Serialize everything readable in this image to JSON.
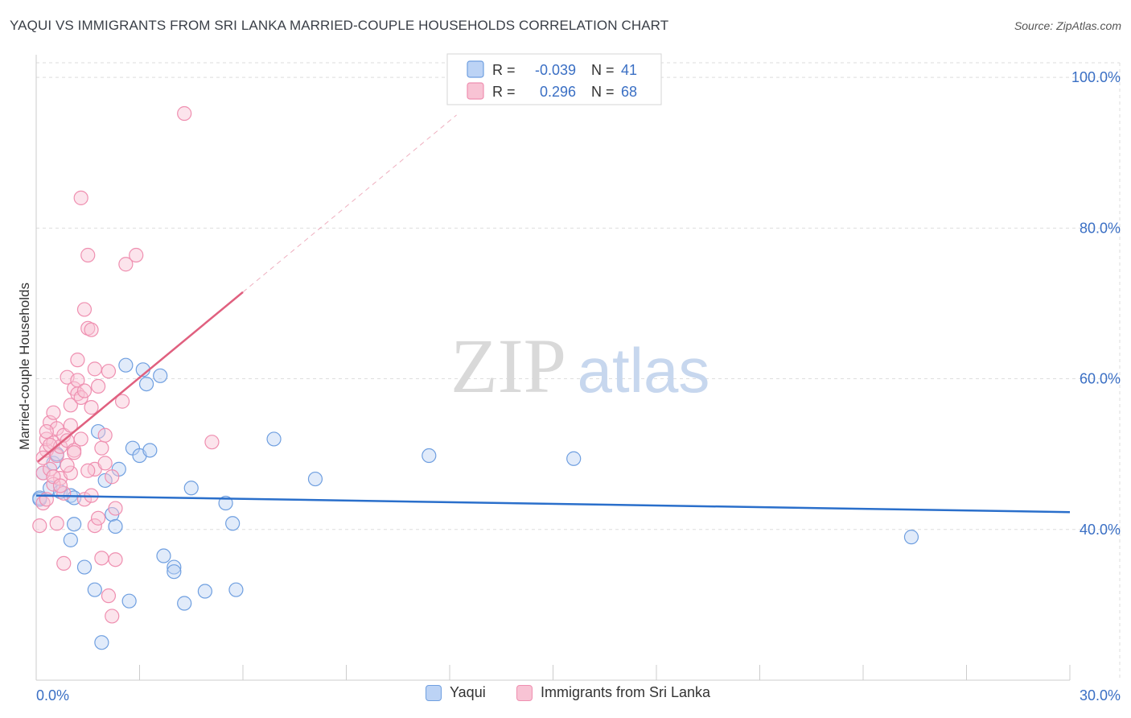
{
  "title": "YAQUI VS IMMIGRANTS FROM SRI LANKA MARRIED-COUPLE HOUSEHOLDS CORRELATION CHART",
  "source": "Source: ZipAtlas.com",
  "watermark": {
    "zip": "ZIP",
    "atlas": "atlas"
  },
  "colors": {
    "blue": "#6f9fe0",
    "blue_fill": "#bcd3f5",
    "blue_line": "#2a6fcb",
    "pink": "#ef8fb0",
    "pink_fill": "#f8c3d4",
    "pink_line": "#e0607f",
    "axis_text": "#3a6fc4",
    "grid": "#dddddd"
  },
  "stats_legend": {
    "rows": [
      {
        "r_label": "R =",
        "r_value": "-0.039",
        "n_label": "N =",
        "n_value": "41",
        "series": "blue"
      },
      {
        "r_label": "R =",
        "r_value": "0.296",
        "n_label": "N =",
        "n_value": "68",
        "series": "pink"
      }
    ]
  },
  "bottom_legend": [
    {
      "label": "Yaqui",
      "series": "blue"
    },
    {
      "label": "Immigrants from Sri Lanka",
      "series": "pink"
    }
  ],
  "chart_data": {
    "type": "scatter",
    "ylabel": "Married-couple Households",
    "xlim": [
      0,
      30
    ],
    "ylim": [
      20,
      103
    ],
    "x_tick_labels": [
      {
        "value": 0,
        "label": "0.0%"
      },
      {
        "value": 30,
        "label": "30.0%"
      }
    ],
    "y_tick_labels": [
      {
        "value": 40,
        "label": "40.0%"
      },
      {
        "value": 60,
        "label": "60.0%"
      },
      {
        "value": 80,
        "label": "80.0%"
      },
      {
        "value": 100,
        "label": "100.0%"
      }
    ],
    "series": [
      {
        "name": "Yaqui",
        "color": "blue",
        "points": [
          [
            0.1,
            44.2
          ],
          [
            0.2,
            47.5
          ],
          [
            0.4,
            45.5
          ],
          [
            0.5,
            48.8
          ],
          [
            0.6,
            50.0
          ],
          [
            0.7,
            45.0
          ],
          [
            1.0,
            44.5
          ],
          [
            1.1,
            44.2
          ],
          [
            1.8,
            53.0
          ],
          [
            2.0,
            46.5
          ],
          [
            2.2,
            42.0
          ],
          [
            2.4,
            48.0
          ],
          [
            2.6,
            61.8
          ],
          [
            2.8,
            50.8
          ],
          [
            3.0,
            49.8
          ],
          [
            3.1,
            61.2
          ],
          [
            3.2,
            59.3
          ],
          [
            3.3,
            50.5
          ],
          [
            3.6,
            60.4
          ],
          [
            4.5,
            45.5
          ],
          [
            5.5,
            43.5
          ],
          [
            5.7,
            40.8
          ],
          [
            6.9,
            52.0
          ],
          [
            8.1,
            46.7
          ],
          [
            11.4,
            49.8
          ],
          [
            15.6,
            49.4
          ],
          [
            25.4,
            39.0
          ],
          [
            1.0,
            38.6
          ],
          [
            1.1,
            40.7
          ],
          [
            1.4,
            35.0
          ],
          [
            1.7,
            32.0
          ],
          [
            1.9,
            25.0
          ],
          [
            2.3,
            40.4
          ],
          [
            2.7,
            30.5
          ],
          [
            3.7,
            36.5
          ],
          [
            4.0,
            35.0
          ],
          [
            4.0,
            34.4
          ],
          [
            4.3,
            30.2
          ],
          [
            4.9,
            31.8
          ],
          [
            5.8,
            32.0
          ],
          [
            0.1,
            44.0
          ]
        ]
      },
      {
        "name": "Immigrants from Sri Lanka",
        "color": "pink",
        "points": [
          [
            0.1,
            40.5
          ],
          [
            0.2,
            43.5
          ],
          [
            0.2,
            47.5
          ],
          [
            0.3,
            50.5
          ],
          [
            0.3,
            52.0
          ],
          [
            0.4,
            54.2
          ],
          [
            0.4,
            48.0
          ],
          [
            0.5,
            55.5
          ],
          [
            0.5,
            51.5
          ],
          [
            0.6,
            53.4
          ],
          [
            0.6,
            49.8
          ],
          [
            0.7,
            46.8
          ],
          [
            0.7,
            51.0
          ],
          [
            0.8,
            52.5
          ],
          [
            0.8,
            44.8
          ],
          [
            0.9,
            60.2
          ],
          [
            0.9,
            51.8
          ],
          [
            1.0,
            56.5
          ],
          [
            1.0,
            47.5
          ],
          [
            1.1,
            58.7
          ],
          [
            1.1,
            50.5
          ],
          [
            1.2,
            58.0
          ],
          [
            1.2,
            62.5
          ],
          [
            1.3,
            57.5
          ],
          [
            1.3,
            52.0
          ],
          [
            1.4,
            69.2
          ],
          [
            1.4,
            44.0
          ],
          [
            1.5,
            76.4
          ],
          [
            1.5,
            66.7
          ],
          [
            1.6,
            66.5
          ],
          [
            1.6,
            56.2
          ],
          [
            1.7,
            61.3
          ],
          [
            1.7,
            48.0
          ],
          [
            1.8,
            59.0
          ],
          [
            1.9,
            50.8
          ],
          [
            2.0,
            52.5
          ],
          [
            2.1,
            61.0
          ],
          [
            2.2,
            47.0
          ],
          [
            2.3,
            42.8
          ],
          [
            2.5,
            57.0
          ],
          [
            2.6,
            75.2
          ],
          [
            2.9,
            76.4
          ],
          [
            4.3,
            95.2
          ],
          [
            5.1,
            51.6
          ],
          [
            1.3,
            84.0
          ],
          [
            0.3,
            44.0
          ],
          [
            0.5,
            46.0
          ],
          [
            0.6,
            40.8
          ],
          [
            0.8,
            35.5
          ],
          [
            0.9,
            48.5
          ],
          [
            1.0,
            53.8
          ],
          [
            1.2,
            59.8
          ],
          [
            1.4,
            58.4
          ],
          [
            1.5,
            47.8
          ],
          [
            1.6,
            44.5
          ],
          [
            1.7,
            40.5
          ],
          [
            1.8,
            41.5
          ],
          [
            1.9,
            36.2
          ],
          [
            2.0,
            48.8
          ],
          [
            2.1,
            31.2
          ],
          [
            2.2,
            28.5
          ],
          [
            2.3,
            36.0
          ],
          [
            0.4,
            51.2
          ],
          [
            0.5,
            47.0
          ],
          [
            0.2,
            49.5
          ],
          [
            0.3,
            53.0
          ],
          [
            1.1,
            50.2
          ],
          [
            0.7,
            45.8
          ]
        ]
      }
    ],
    "trend_lines": [
      {
        "series": "Yaqui",
        "x": [
          0,
          30
        ],
        "y": [
          44.5,
          42.3
        ],
        "style": "solid"
      },
      {
        "series": "Immigrants from Sri Lanka",
        "x": [
          0.05,
          6.0
        ],
        "y": [
          49.0,
          71.5
        ],
        "style": "solid"
      },
      {
        "series": "Immigrants from Sri Lanka",
        "x": [
          6.0,
          12.2
        ],
        "y": [
          71.5,
          95.0
        ],
        "style": "dashed"
      }
    ]
  }
}
